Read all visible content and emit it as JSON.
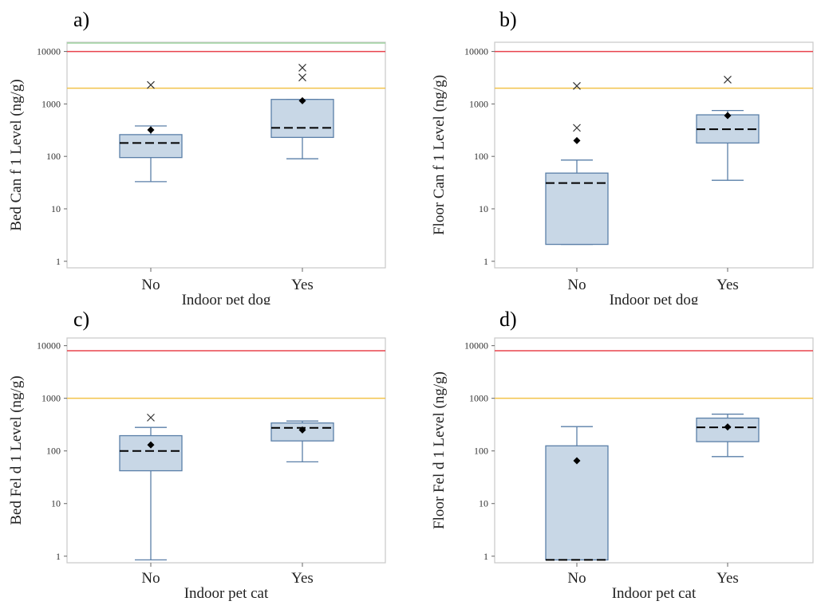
{
  "colors": {
    "box_fill": "#c8d7e6",
    "box_edge": "#5a7fa8",
    "red_line": "#e8434d",
    "orange_line": "#f2c34a",
    "green_line": "#9fd3a0",
    "frame": "#c8c8c8",
    "mean_marker": "#000000",
    "outlier_marker": "#333333",
    "median_line": "#000000"
  },
  "chart_data": [
    {
      "id": "a",
      "panel_label": "a)",
      "type": "box",
      "scale": "log",
      "xlabel": "Indoor pet dog",
      "ylabel": "Bed Can f 1 Level (ng/g)",
      "ylim": [
        0.75,
        15000
      ],
      "yticks": [
        1,
        10,
        100,
        1000,
        10000
      ],
      "ytick_labels": [
        "1",
        "10",
        "100",
        "1000",
        "10000"
      ],
      "categories": [
        "No",
        "Yes"
      ],
      "reference_lines": [
        {
          "value": 10000,
          "color": "red"
        },
        {
          "value": 2000,
          "color": "orange"
        },
        {
          "value": 14500,
          "color": "green"
        }
      ],
      "boxes": [
        {
          "category": "No",
          "whisker_low": 33,
          "q1": 95,
          "median": 180,
          "q3": 260,
          "whisker_high": 380,
          "mean": 320,
          "outliers": [
            2300
          ]
        },
        {
          "category": "Yes",
          "whisker_low": 90,
          "q1": 230,
          "median": 350,
          "q3": 1220,
          "whisker_high": 1220,
          "mean": 1150,
          "outliers": [
            4900,
            3200
          ]
        }
      ]
    },
    {
      "id": "b",
      "panel_label": "b)",
      "type": "box",
      "scale": "log",
      "xlabel": "Indoor pet dog",
      "ylabel": "Floor Can f 1 Level (ng/g)",
      "ylim": [
        0.75,
        15000
      ],
      "yticks": [
        1,
        10,
        100,
        1000,
        10000
      ],
      "ytick_labels": [
        "1",
        "10",
        "100",
        "1000",
        "10000"
      ],
      "categories": [
        "No",
        "Yes"
      ],
      "reference_lines": [
        {
          "value": 10000,
          "color": "red"
        },
        {
          "value": 2000,
          "color": "orange"
        }
      ],
      "boxes": [
        {
          "category": "No",
          "whisker_low": 2.1,
          "q1": 2.1,
          "median": 31,
          "q3": 48,
          "whisker_high": 85,
          "mean": 200,
          "outliers": [
            2200,
            350
          ]
        },
        {
          "category": "Yes",
          "whisker_low": 35,
          "q1": 180,
          "median": 330,
          "q3": 620,
          "whisker_high": 750,
          "mean": 600,
          "outliers": [
            2900
          ]
        }
      ]
    },
    {
      "id": "c",
      "panel_label": "c)",
      "type": "box",
      "scale": "log",
      "xlabel": "Indoor pet cat",
      "ylabel": "Bed Fel d 1 Level (ng/g)",
      "ylim": [
        0.75,
        14000
      ],
      "yticks": [
        1,
        10,
        100,
        1000,
        10000
      ],
      "ytick_labels": [
        "1",
        "10",
        "100",
        "1000",
        "10000"
      ],
      "categories": [
        "No",
        "Yes"
      ],
      "reference_lines": [
        {
          "value": 8000,
          "color": "red"
        },
        {
          "value": 1000,
          "color": "orange"
        }
      ],
      "boxes": [
        {
          "category": "No",
          "whisker_low": 0.85,
          "q1": 42,
          "median": 100,
          "q3": 195,
          "whisker_high": 280,
          "mean": 130,
          "outliers": [
            430
          ]
        },
        {
          "category": "Yes",
          "whisker_low": 62,
          "q1": 155,
          "median": 275,
          "q3": 340,
          "whisker_high": 370,
          "mean": 250,
          "outliers": []
        }
      ]
    },
    {
      "id": "d",
      "panel_label": "d)",
      "type": "box",
      "scale": "log",
      "xlabel": "Indoor pet cat",
      "ylabel": "Floor Fel d 1 Level (ng/g)",
      "ylim": [
        0.75,
        14000
      ],
      "yticks": [
        1,
        10,
        100,
        1000,
        10000
      ],
      "ytick_labels": [
        "1",
        "10",
        "100",
        "1000",
        "10000"
      ],
      "categories": [
        "No",
        "Yes"
      ],
      "reference_lines": [
        {
          "value": 8000,
          "color": "red"
        },
        {
          "value": 1000,
          "color": "orange"
        }
      ],
      "boxes": [
        {
          "category": "No",
          "whisker_low": 0.85,
          "q1": 0.85,
          "median": 0.85,
          "q3": 125,
          "whisker_high": 290,
          "mean": 65,
          "outliers": []
        },
        {
          "category": "Yes",
          "whisker_low": 78,
          "q1": 150,
          "median": 280,
          "q3": 420,
          "whisker_high": 500,
          "mean": 285,
          "outliers": []
        }
      ]
    }
  ]
}
